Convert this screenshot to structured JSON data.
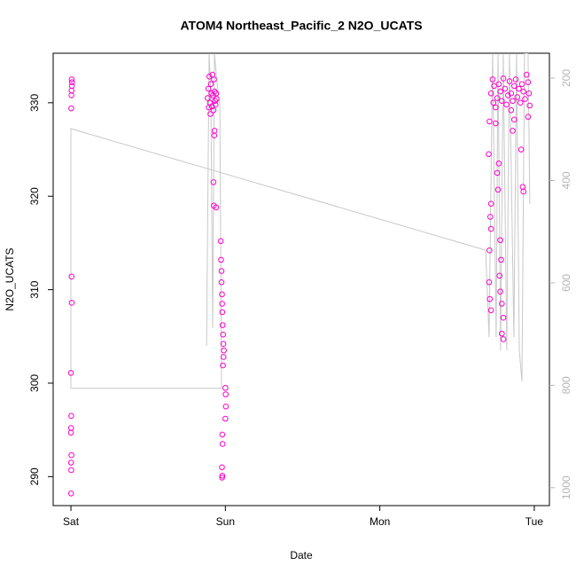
{
  "chart_data": {
    "type": "scatter",
    "title": "ATOM4 Northeast_Pacific_2 N2O_UCATS",
    "x_label": "Date",
    "y_label": "N2O_UCATS",
    "color": "#ff00cc",
    "x": [
      0.005,
      0.007,
      0.006,
      0.004,
      0.003,
      0.002,
      0.004,
      0.005,
      0.0,
      0.002,
      0.001,
      0.0,
      0.003,
      0.001,
      0.002,
      0.001,
      0.885,
      0.89,
      0.893,
      0.896,
      0.9,
      0.903,
      0.906,
      0.91,
      0.913,
      0.916,
      0.92,
      0.923,
      0.926,
      0.93,
      0.933,
      0.936,
      0.94,
      0.943,
      0.93,
      0.928,
      0.923,
      0.925,
      0.94,
      0.97,
      0.972,
      0.975,
      0.975,
      0.978,
      0.979,
      0.98,
      0.982,
      0.985,
      0.987,
      0.99,
      0.988,
      0.984,
      1.0,
      1.002,
      1.003,
      1.0,
      0.98,
      0.982,
      0.978,
      0.98,
      0.979,
      2.72,
      2.73,
      2.735,
      2.74,
      2.75,
      2.76,
      2.77,
      2.78,
      2.79,
      2.8,
      2.81,
      2.82,
      2.83,
      2.84,
      2.85,
      2.86,
      2.87,
      2.88,
      2.89,
      2.9,
      2.91,
      2.92,
      2.93,
      2.94,
      2.95,
      2.96,
      2.965,
      2.97,
      2.705,
      2.71,
      2.72,
      2.715,
      2.72,
      2.71,
      2.708,
      2.712,
      2.72,
      2.76,
      2.77,
      2.765,
      2.78,
      2.785,
      2.775,
      2.78,
      2.79,
      2.8,
      2.79,
      2.8,
      2.87,
      2.86,
      2.915,
      2.925,
      2.93,
      2.96,
      2.75,
      2.85
    ],
    "values": [
      332.5,
      332.2,
      331.8,
      331.3,
      330.8,
      329.4,
      311.4,
      308.6,
      301.1,
      296.5,
      295.2,
      294.7,
      292.3,
      291.5,
      290.7,
      288.2,
      330.5,
      331.5,
      329.5,
      332.8,
      330,
      328.8,
      332,
      331,
      329.6,
      333,
      330.8,
      329.2,
      332.5,
      331.2,
      330.2,
      329.8,
      331,
      330.4,
      327,
      326.5,
      321.5,
      319,
      318.8,
      315.2,
      313.2,
      312,
      310.8,
      309.5,
      308.5,
      307.6,
      306.2,
      305.2,
      304.2,
      303.5,
      302.8,
      301.9,
      299.5,
      298.8,
      297.5,
      296.2,
      294.5,
      293.5,
      291,
      290.1,
      289.9,
      331,
      332.5,
      330,
      331.8,
      329.5,
      330.5,
      332,
      331.2,
      330.2,
      332.6,
      331.5,
      329.8,
      330.8,
      332.3,
      331,
      330.2,
      331.8,
      332.5,
      330.6,
      331.5,
      330,
      332,
      331.2,
      330.4,
      333,
      332.2,
      331,
      329.7,
      324.5,
      328,
      319.2,
      317.8,
      316.5,
      314.2,
      310.8,
      309,
      307.8,
      322.5,
      323.5,
      320.7,
      315.3,
      313.2,
      311.5,
      309.8,
      308.5,
      307,
      305.3,
      304.7,
      328.2,
      327,
      325,
      321,
      320.5,
      328.5,
      327.8,
      329.2
    ],
    "line": {
      "color": "#c8c8c8",
      "axis": "y2",
      "x": [
        0.878,
        0.895,
        0.906,
        0.918,
        0.929,
        0.947,
        0.964,
        0.975,
        0,
        0,
        2.685,
        2.707,
        2.73,
        2.753,
        2.765,
        2.782,
        2.799,
        2.822,
        2.839,
        2.868,
        2.885,
        2.903,
        2.92,
        2.937,
        2.96,
        2.971
      ],
      "values": [
        723,
        152,
        238,
        688,
        152,
        212,
        255,
        806,
        806,
        299,
        536,
        706,
        152,
        706,
        152,
        732,
        152,
        732,
        152,
        706,
        152,
        732,
        792,
        152,
        152,
        446
      ]
    },
    "xlim": [
      -0.115,
      3.098
    ],
    "xticks": [
      {
        "value": 0,
        "label": "Sat"
      },
      {
        "value": 1,
        "label": "Sun"
      },
      {
        "value": 2,
        "label": "Mon"
      },
      {
        "value": 3,
        "label": "Tue"
      }
    ],
    "ylim": [
      286.9,
      335.3
    ],
    "yticks": [
      290,
      300,
      310,
      320,
      330
    ],
    "y2lim": [
      1035,
      151.5
    ],
    "y2ticks": [
      200,
      400,
      600,
      800,
      1000
    ],
    "y2color": "#b4b4b4"
  }
}
